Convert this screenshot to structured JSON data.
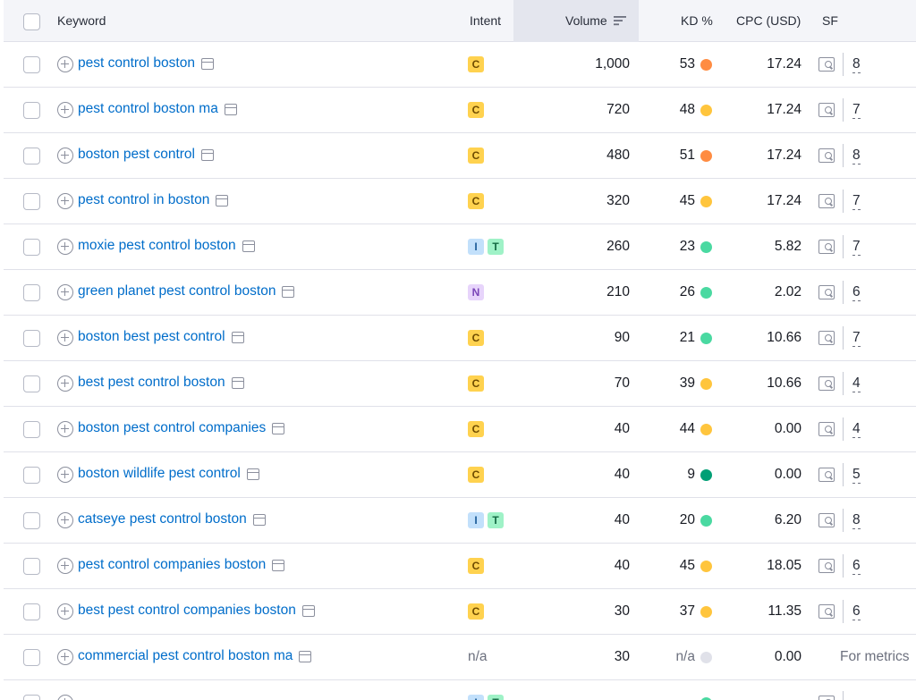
{
  "columns": {
    "keyword": "Keyword",
    "intent": "Intent",
    "volume": "Volume",
    "kd": "KD %",
    "cpc": "CPC (USD)",
    "sf": "SF"
  },
  "sort": {
    "column": "volume",
    "icon": "sort-descending-icon"
  },
  "colors": {
    "link": "#006dca",
    "kd_orange": "#ff8c42",
    "kd_yellow": "#ffc53d",
    "kd_green": "#4ad9a1",
    "kd_dark_green": "#009f75",
    "kd_na": "#e0e1e9"
  },
  "rows": [
    {
      "keyword": "pest control boston",
      "intent": [
        "C"
      ],
      "volume": "1,000",
      "kd": "53",
      "kd_color": "#ff8c42",
      "cpc": "17.24",
      "sf": "8"
    },
    {
      "keyword": "pest control boston ma",
      "intent": [
        "C"
      ],
      "volume": "720",
      "kd": "48",
      "kd_color": "#ffc53d",
      "cpc": "17.24",
      "sf": "7"
    },
    {
      "keyword": "boston pest control",
      "intent": [
        "C"
      ],
      "volume": "480",
      "kd": "51",
      "kd_color": "#ff8c42",
      "cpc": "17.24",
      "sf": "8"
    },
    {
      "keyword": "pest control in boston",
      "intent": [
        "C"
      ],
      "volume": "320",
      "kd": "45",
      "kd_color": "#ffc53d",
      "cpc": "17.24",
      "sf": "7"
    },
    {
      "keyword": "moxie pest control boston",
      "intent": [
        "I",
        "T"
      ],
      "volume": "260",
      "kd": "23",
      "kd_color": "#4ad9a1",
      "cpc": "5.82",
      "sf": "7"
    },
    {
      "keyword": "green planet pest control boston",
      "intent": [
        "N"
      ],
      "volume": "210",
      "kd": "26",
      "kd_color": "#4ad9a1",
      "cpc": "2.02",
      "sf": "6"
    },
    {
      "keyword": "boston best pest control",
      "intent": [
        "C"
      ],
      "volume": "90",
      "kd": "21",
      "kd_color": "#4ad9a1",
      "cpc": "10.66",
      "sf": "7"
    },
    {
      "keyword": "best pest control boston",
      "intent": [
        "C"
      ],
      "volume": "70",
      "kd": "39",
      "kd_color": "#ffc53d",
      "cpc": "10.66",
      "sf": "4"
    },
    {
      "keyword": "boston pest control companies",
      "intent": [
        "C"
      ],
      "volume": "40",
      "kd": "44",
      "kd_color": "#ffc53d",
      "cpc": "0.00",
      "sf": "4"
    },
    {
      "keyword": "boston wildlife pest control",
      "intent": [
        "C"
      ],
      "volume": "40",
      "kd": "9",
      "kd_color": "#009f75",
      "cpc": "0.00",
      "sf": "5"
    },
    {
      "keyword": "catseye pest control boston",
      "intent": [
        "I",
        "T"
      ],
      "volume": "40",
      "kd": "20",
      "kd_color": "#4ad9a1",
      "cpc": "6.20",
      "sf": "8"
    },
    {
      "keyword": "pest control companies boston",
      "intent": [
        "C"
      ],
      "volume": "40",
      "kd": "45",
      "kd_color": "#ffc53d",
      "cpc": "18.05",
      "sf": "6"
    },
    {
      "keyword": "best pest control companies boston",
      "intent": [
        "C"
      ],
      "volume": "30",
      "kd": "37",
      "kd_color": "#ffc53d",
      "cpc": "11.35",
      "sf": "6"
    },
    {
      "keyword": "commercial pest control boston ma",
      "intent": [],
      "intent_text": "n/a",
      "volume": "30",
      "kd": "n/a",
      "kd_color": "#e0e1e9",
      "cpc": "0.00",
      "sf": "",
      "sf_text": "For metrics"
    }
  ],
  "partial_row": {
    "intent": [
      "I",
      "T"
    ],
    "kd_color": "#4ad9a1"
  }
}
